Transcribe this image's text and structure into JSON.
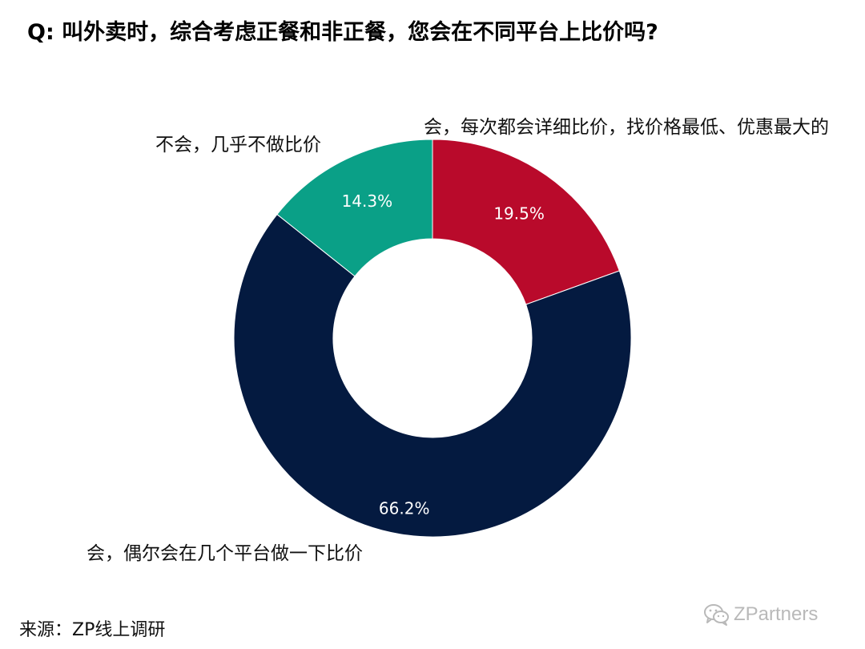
{
  "question": "Q: 叫外卖时，综合考虑正餐和非正餐，您会在不同平台上比价吗?",
  "source": "来源：ZP线上调研",
  "watermark": {
    "text": "ZPartners",
    "icon": "wechat-icon",
    "color": "#b9b9b9"
  },
  "chart_data": {
    "type": "pie",
    "donut": true,
    "start_angle_deg": 0,
    "direction": "clockwise",
    "slices": [
      {
        "label": "会，每次都会详细比价，找价格最低、优惠最大的",
        "value": 19.5,
        "value_label": "19.5%",
        "color": "#b90a2b"
      },
      {
        "label": "会，偶尔会在几个平台做一下比价",
        "value": 66.2,
        "value_label": "66.2%",
        "color": "#041a40"
      },
      {
        "label": "不会，几乎不做比价",
        "value": 14.3,
        "value_label": "14.3%",
        "color": "#0aa087"
      }
    ],
    "legend": "none"
  }
}
